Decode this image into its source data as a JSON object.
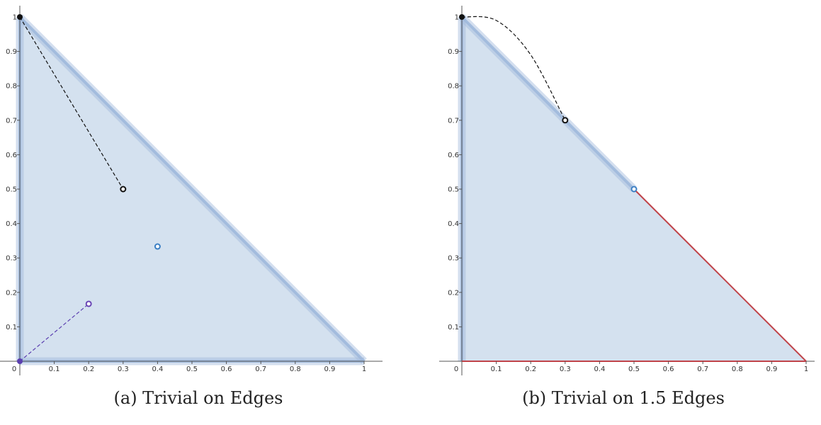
{
  "panels": [
    {
      "id": "a",
      "caption": "(a) Trivial on Edges",
      "x_ticks": [
        "0",
        "0.1",
        "0.2",
        "0.3",
        "0.4",
        "0.5",
        "0.6",
        "0.7",
        "0.8",
        "0.9",
        "1"
      ],
      "y_ticks": [
        "0.1",
        "0.2",
        "0.3",
        "0.4",
        "0.5",
        "0.6",
        "0.7",
        "0.8",
        "0.9",
        "1"
      ],
      "triangle": [
        [
          0,
          0
        ],
        [
          1,
          0
        ],
        [
          0,
          1
        ]
      ],
      "highlighted_edges": [
        {
          "from": [
            0,
            0
          ],
          "to": [
            0,
            1
          ],
          "color": "#9fb9dc"
        },
        {
          "from": [
            0,
            1
          ],
          "to": [
            1,
            0
          ],
          "color": "#9fb9dc"
        },
        {
          "from": [
            0,
            0
          ],
          "to": [
            1,
            0
          ],
          "color": "#9fb9dc"
        }
      ],
      "red_edges": [],
      "dashed_curves": [
        {
          "points": [
            [
              0,
              1
            ],
            [
              0.3,
              0.5
            ]
          ],
          "color": "#111111"
        },
        {
          "points": [
            [
              0,
              0
            ],
            [
              0.2,
              0.1667
            ]
          ],
          "color": "#5b3fb0"
        }
      ],
      "filled_points": [
        {
          "x": 0,
          "y": 1,
          "color": "#111111"
        },
        {
          "x": 0,
          "y": 0,
          "color": "#5b3fb0"
        }
      ],
      "open_points": [
        {
          "x": 0.3,
          "y": 0.5,
          "color": "#111111"
        },
        {
          "x": 0.4,
          "y": 0.3333,
          "color": "#3b7fc4"
        },
        {
          "x": 0.2,
          "y": 0.1667,
          "color": "#6a45b5"
        }
      ]
    },
    {
      "id": "b",
      "caption": "(b) Trivial on 1.5 Edges",
      "x_ticks": [
        "0",
        "0.1",
        "0.2",
        "0.3",
        "0.4",
        "0.5",
        "0.6",
        "0.7",
        "0.8",
        "0.9",
        "1"
      ],
      "y_ticks": [
        "0.1",
        "0.2",
        "0.3",
        "0.4",
        "0.5",
        "0.6",
        "0.7",
        "0.8",
        "0.9",
        "1"
      ],
      "triangle": [
        [
          0,
          0
        ],
        [
          1,
          0
        ],
        [
          0,
          1
        ]
      ],
      "highlighted_edges": [
        {
          "from": [
            0,
            0
          ],
          "to": [
            0,
            1
          ],
          "color": "#9fb9dc"
        },
        {
          "from": [
            0,
            1
          ],
          "to": [
            0.5,
            0.5
          ],
          "color": "#9fb9dc"
        }
      ],
      "red_edges": [
        {
          "from": [
            0.5,
            0.5
          ],
          "to": [
            1,
            0
          ],
          "color": "#c0444a"
        },
        {
          "from": [
            0,
            0
          ],
          "to": [
            1,
            0
          ],
          "color": "#c0444a"
        }
      ],
      "dashed_curves": [
        {
          "points": [
            [
              0,
              1
            ],
            [
              0.1,
              0.99
            ],
            [
              0.2,
              0.89
            ],
            [
              0.3,
              0.7
            ]
          ],
          "color": "#111111"
        }
      ],
      "filled_points": [
        {
          "x": 0,
          "y": 1,
          "color": "#111111"
        }
      ],
      "open_points": [
        {
          "x": 0.3,
          "y": 0.7,
          "color": "#111111"
        },
        {
          "x": 0.5,
          "y": 0.5,
          "color": "#3b7fc4"
        }
      ]
    }
  ],
  "colors": {
    "fill": "#d4e1ef",
    "axis": "#555555"
  }
}
